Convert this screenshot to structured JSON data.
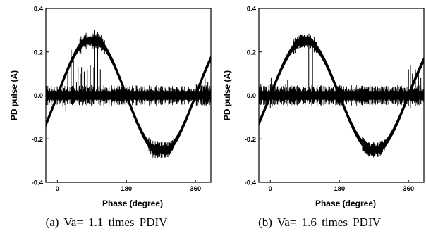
{
  "chart_data": [
    {
      "type": "line",
      "caption": "(a) Va= 1.1 times PDIV",
      "xlabel": "Phase (degree)",
      "ylabel": "PD pulse (A)",
      "xlim": [
        -30,
        400
      ],
      "ylim": [
        -0.4,
        0.4
      ],
      "x_ticks": [
        {
          "value": 0,
          "label": "0"
        },
        {
          "value": 180,
          "label": "180"
        },
        {
          "value": 360,
          "label": "360"
        }
      ],
      "y_ticks": [
        {
          "value": 0.4,
          "label": "0.4"
        },
        {
          "value": 0.2,
          "label": "0.2"
        },
        {
          "value": 0.0,
          "label": "0.0"
        },
        {
          "value": -0.2,
          "label": "-0.2"
        },
        {
          "value": -0.4,
          "label": "-0.4"
        }
      ],
      "grid": false,
      "sine": {
        "amplitude": 0.265,
        "band_width": 0.03,
        "clip_level": 0.25,
        "peak_noise": 0.025
      },
      "baseline": {
        "value": 0.0,
        "band_width": 0.04
      },
      "pulses": [
        {
          "x": 22,
          "max": 0.02,
          "min": -0.07
        },
        {
          "x": 27,
          "max": 0.1,
          "min": -0.03
        },
        {
          "x": 36,
          "max": 0.21,
          "min": -0.04
        },
        {
          "x": 42,
          "max": 0.17,
          "min": -0.02
        },
        {
          "x": 50,
          "max": 0.06,
          "min": -0.02
        },
        {
          "x": 54,
          "max": 0.13,
          "min": -0.03
        },
        {
          "x": 60,
          "max": 0.1,
          "min": -0.02
        },
        {
          "x": 63,
          "max": 0.13,
          "min": -0.03
        },
        {
          "x": 70,
          "max": 0.11,
          "min": -0.02
        },
        {
          "x": 78,
          "max": 0.12,
          "min": -0.02
        },
        {
          "x": 86,
          "max": 0.14,
          "min": -0.02
        },
        {
          "x": 95,
          "max": 0.13,
          "min": -0.02
        },
        {
          "x": 96,
          "max": 0.3,
          "min": -0.02
        },
        {
          "x": 105,
          "max": 0.29,
          "min": -0.02
        },
        {
          "x": 112,
          "max": 0.12,
          "min": -0.02
        },
        {
          "x": 362,
          "max": 0.05,
          "min": -0.05
        },
        {
          "x": 374,
          "max": 0.06,
          "min": -0.04
        },
        {
          "x": 385,
          "max": 0.08,
          "min": -0.05
        },
        {
          "x": 392,
          "max": 0.06,
          "min": -0.04
        }
      ]
    },
    {
      "type": "line",
      "caption": "(b) Va= 1.6 times PDIV",
      "xlabel": "Phase (degree)",
      "ylabel": "PD pulse (A)",
      "xlim": [
        -30,
        400
      ],
      "ylim": [
        -0.4,
        0.4
      ],
      "x_ticks": [
        {
          "value": 0,
          "label": "0"
        },
        {
          "value": 180,
          "label": "180"
        },
        {
          "value": 360,
          "label": "360"
        }
      ],
      "y_ticks": [
        {
          "value": 0.4,
          "label": "0.4"
        },
        {
          "value": 0.2,
          "label": "0.2"
        },
        {
          "value": 0.0,
          "label": "0.0"
        },
        {
          "value": -0.2,
          "label": "-0.2"
        },
        {
          "value": -0.4,
          "label": "-0.4"
        }
      ],
      "grid": false,
      "sine": {
        "amplitude": 0.255,
        "band_width": 0.03,
        "clip_level": 0.25,
        "peak_noise": 0.02
      },
      "baseline": {
        "value": 0.0,
        "band_width": 0.04
      },
      "pulses": [
        {
          "x": -25,
          "max": 0.05,
          "min": -0.04
        },
        {
          "x": -12,
          "max": 0.04,
          "min": -0.04
        },
        {
          "x": 0,
          "max": 0.05,
          "min": -0.06
        },
        {
          "x": 2,
          "max": 0.08,
          "min": -0.04
        },
        {
          "x": 5,
          "max": 0.05,
          "min": -0.05
        },
        {
          "x": 40,
          "max": 0.05,
          "min": -0.02
        },
        {
          "x": 45,
          "max": 0.07,
          "min": -0.02
        },
        {
          "x": 100,
          "max": 0.27,
          "min": -0.02
        },
        {
          "x": 110,
          "max": 0.26,
          "min": -0.02
        },
        {
          "x": 360,
          "max": 0.12,
          "min": -0.05
        },
        {
          "x": 365,
          "max": 0.14,
          "min": -0.06
        },
        {
          "x": 370,
          "max": 0.1,
          "min": -0.04
        },
        {
          "x": 378,
          "max": 0.12,
          "min": -0.05
        },
        {
          "x": 386,
          "max": 0.1,
          "min": -0.04
        },
        {
          "x": 392,
          "max": 0.08,
          "min": -0.04
        }
      ]
    }
  ]
}
